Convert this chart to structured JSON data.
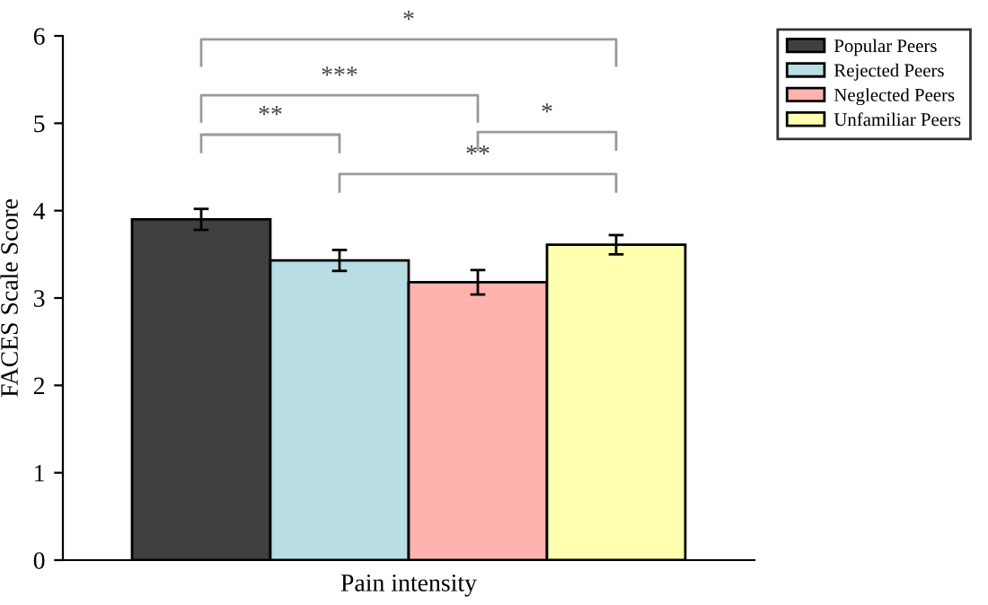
{
  "chart_data": {
    "type": "bar",
    "ylabel": "FACES Scale Score",
    "xlabel": "Pain intensity",
    "categories": [
      null
    ],
    "series": [
      {
        "name": "Popular Peers",
        "color": "#404040",
        "values": [
          3.9
        ],
        "errors": [
          0.12
        ]
      },
      {
        "name": "Rejected Peers",
        "color": "#b8dde4",
        "values": [
          3.43
        ],
        "errors": [
          0.12
        ]
      },
      {
        "name": "Neglected Peers",
        "color": "#ffb3ae",
        "values": [
          3.18
        ],
        "errors": [
          0.14
        ]
      },
      {
        "name": "Unfamiliar Peers",
        "color": "#ffffb0",
        "values": [
          3.61
        ],
        "errors": [
          0.11
        ]
      }
    ],
    "ylim": [
      0,
      6
    ],
    "yticks": [
      0,
      1,
      2,
      3,
      4,
      5,
      6
    ],
    "legend": "top right",
    "grid": false,
    "annotations": [
      "*",
      "***",
      "**",
      "*",
      "**"
    ]
  }
}
